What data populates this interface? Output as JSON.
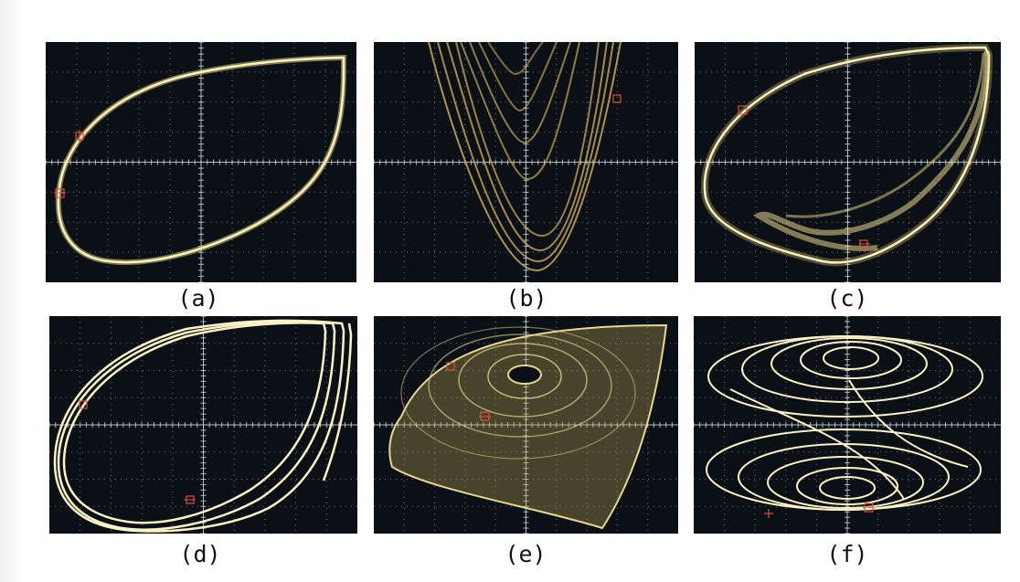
{
  "panels": [
    {
      "id": "a",
      "label": "(a)"
    },
    {
      "id": "b",
      "label": "(b)"
    },
    {
      "id": "c",
      "label": "(c)"
    },
    {
      "id": "d",
      "label": "(d)"
    },
    {
      "id": "e",
      "label": "(e)"
    },
    {
      "id": "f",
      "label": "(f)"
    }
  ],
  "colors": {
    "screen_background": "#0b1016",
    "trace": "#f4ecb0",
    "trace_glow": "#d9c46a",
    "grid": "#c8d0d8",
    "cursor_marker": "#e0503a"
  }
}
